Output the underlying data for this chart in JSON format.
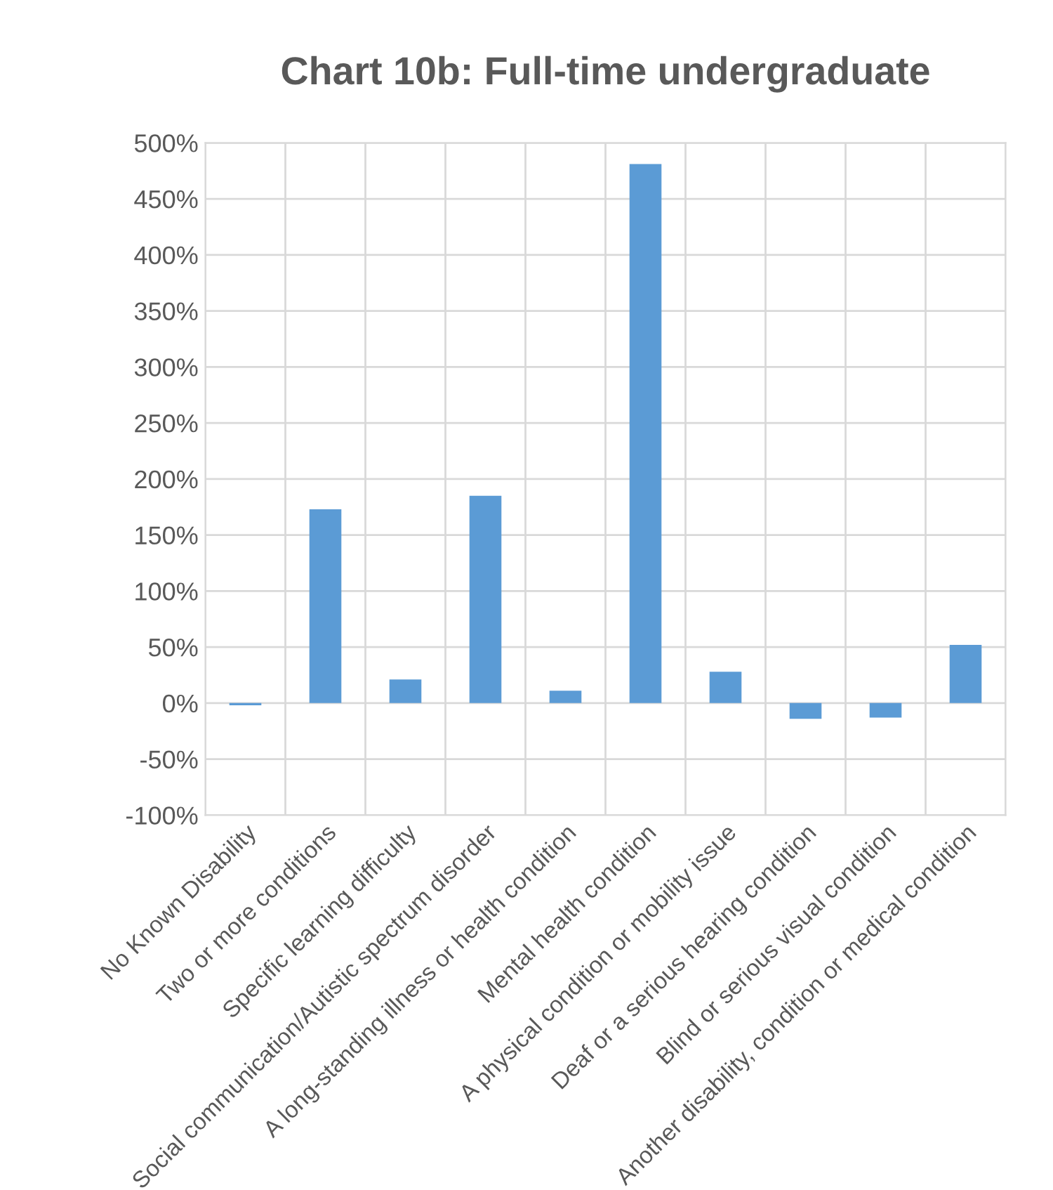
{
  "chart_data": {
    "type": "bar",
    "title": "Chart 10b: Full-time undergraduate",
    "categories": [
      "No Known Disability",
      "Two or more conditions",
      "Specific learning difficulty",
      "Social communication/Autistic spectrum disorder",
      "A long-standing illness or health condition",
      "Mental health condition",
      "A physical condition or mobility issue",
      "Deaf or a serious hearing condition",
      "Blind or serious visual condition",
      "Another disability, condition or medical condition"
    ],
    "values": [
      -2,
      173,
      21,
      185,
      11,
      481,
      28,
      -14,
      -13,
      52
    ],
    "color": "#5b9bd5",
    "ylim": [
      -100,
      500
    ],
    "yticks": [
      {
        "value": -100,
        "label": "-100%"
      },
      {
        "value": -50,
        "label": "-50%"
      },
      {
        "value": 0,
        "label": "0%"
      },
      {
        "value": 50,
        "label": "50%"
      },
      {
        "value": 100,
        "label": "100%"
      },
      {
        "value": 150,
        "label": "150%"
      },
      {
        "value": 200,
        "label": "200%"
      },
      {
        "value": 250,
        "label": "250%"
      },
      {
        "value": 300,
        "label": "300%"
      },
      {
        "value": 350,
        "label": "350%"
      },
      {
        "value": 400,
        "label": "400%"
      },
      {
        "value": 450,
        "label": "450%"
      },
      {
        "value": 500,
        "label": "500%"
      }
    ],
    "grid": true
  }
}
